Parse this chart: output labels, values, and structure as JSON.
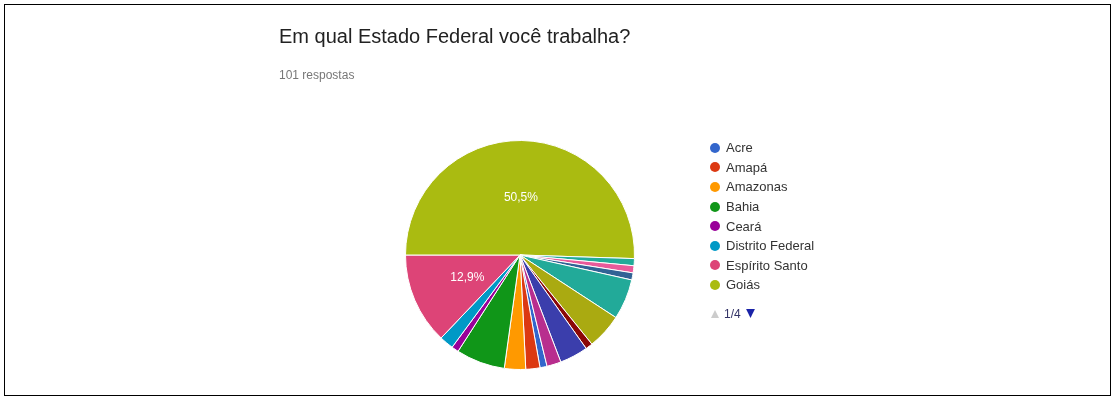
{
  "chart_data": {
    "type": "pie",
    "title": "Em qual Estado Federal você trabalha?",
    "subtitle": "101 respostas",
    "categories": [
      "Acre",
      "Amapá",
      "Amazonas",
      "Bahia",
      "Ceará",
      "Distrito Federal",
      "Espírito Santo",
      "Goiás",
      null,
      null,
      null,
      null,
      null,
      null,
      null,
      null
    ],
    "values": [
      1,
      2,
      3,
      6.9,
      1,
      2,
      12.9,
      50.5,
      1,
      1,
      1,
      5.7,
      5,
      1,
      4,
      2
    ],
    "colors": [
      "#3366cc",
      "#dc3912",
      "#ff9900",
      "#109618",
      "#990099",
      "#0099c6",
      "#dd4477",
      "#aabb11",
      "#22aa99",
      "#e85a9a",
      "#316395",
      "#22aa99",
      "#aaaa11",
      "#8b0707",
      "#3b3eac",
      "#b82e8e"
    ],
    "value_labels": [
      null,
      null,
      null,
      null,
      null,
      null,
      "12,9%",
      "50,5%",
      null,
      null,
      null,
      null,
      null,
      null,
      null,
      null
    ],
    "legend": "right",
    "annotations": [
      "1/4"
    ]
  }
}
